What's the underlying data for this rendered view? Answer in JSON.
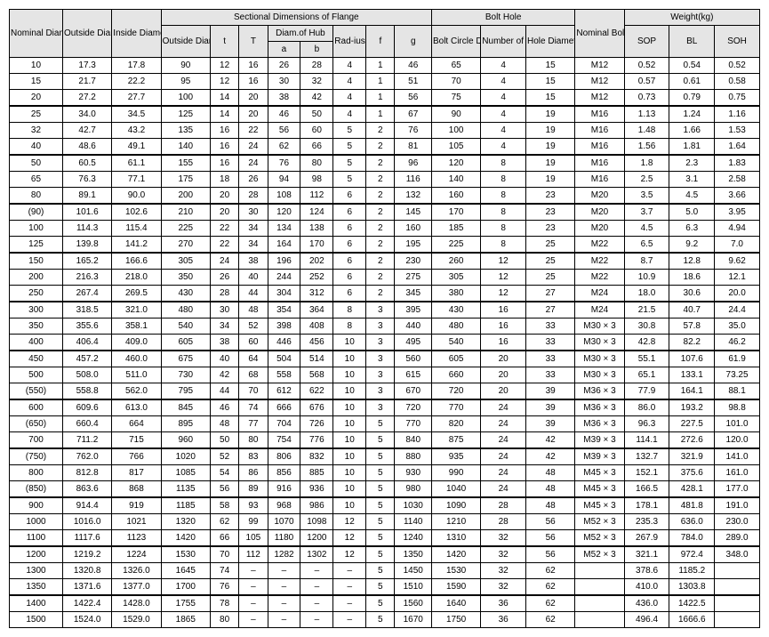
{
  "table": {
    "type": "table",
    "background_color": "#ffffff",
    "header_bg": "#e5e5e5",
    "border_color": "#000000",
    "font_family": "Arial",
    "font_size_pt": 8,
    "columns": [
      "Nominal Diameter of Flange",
      "Outside Diameter of Steel Pipe",
      "Inside Diameter of Flange do",
      "Outside Diameter of Flange D",
      "t",
      "T",
      "a",
      "b",
      "Rad-ius r",
      "f",
      "g",
      "Bolt Circle Diameter C",
      "Number of Bolt Holes",
      "Hole Diameter h",
      "Nominal Bolt Size",
      "SOP",
      "BL",
      "SOH"
    ],
    "header_groups": {
      "sectional": "Sectional Dimensions of Flange",
      "diam_hub": "Diam.of Hub",
      "bolt_hole": "Bolt Hole",
      "weight": "Weight(kg)"
    },
    "col_widths_pct": [
      6.5,
      6,
      6,
      6,
      3.5,
      3.5,
      4,
      4,
      4,
      3.5,
      4.5,
      6,
      5.5,
      6,
      6,
      5.5,
      5.5,
      5.5
    ],
    "groups": [
      [
        [
          "10",
          "17.3",
          "17.8",
          "90",
          "12",
          "16",
          "26",
          "28",
          "4",
          "1",
          "46",
          "65",
          "4",
          "15",
          "M12",
          "0.52",
          "0.54",
          "0.52"
        ],
        [
          "15",
          "21.7",
          "22.2",
          "95",
          "12",
          "16",
          "30",
          "32",
          "4",
          "1",
          "51",
          "70",
          "4",
          "15",
          "M12",
          "0.57",
          "0.61",
          "0.58"
        ],
        [
          "20",
          "27.2",
          "27.7",
          "100",
          "14",
          "20",
          "38",
          "42",
          "4",
          "1",
          "56",
          "75",
          "4",
          "15",
          "M12",
          "0.73",
          "0.79",
          "0.75"
        ]
      ],
      [
        [
          "25",
          "34.0",
          "34.5",
          "125",
          "14",
          "20",
          "46",
          "50",
          "4",
          "1",
          "67",
          "90",
          "4",
          "19",
          "M16",
          "1.13",
          "1.24",
          "1.16"
        ],
        [
          "32",
          "42.7",
          "43.2",
          "135",
          "16",
          "22",
          "56",
          "60",
          "5",
          "2",
          "76",
          "100",
          "4",
          "19",
          "M16",
          "1.48",
          "1.66",
          "1.53"
        ],
        [
          "40",
          "48.6",
          "49.1",
          "140",
          "16",
          "24",
          "62",
          "66",
          "5",
          "2",
          "81",
          "105",
          "4",
          "19",
          "M16",
          "1.56",
          "1.81",
          "1.64"
        ]
      ],
      [
        [
          "50",
          "60.5",
          "61.1",
          "155",
          "16",
          "24",
          "76",
          "80",
          "5",
          "2",
          "96",
          "120",
          "8",
          "19",
          "M16",
          "1.8",
          "2.3",
          "1.83"
        ],
        [
          "65",
          "76.3",
          "77.1",
          "175",
          "18",
          "26",
          "94",
          "98",
          "5",
          "2",
          "116",
          "140",
          "8",
          "19",
          "M16",
          "2.5",
          "3.1",
          "2.58"
        ],
        [
          "80",
          "89.1",
          "90.0",
          "200",
          "20",
          "28",
          "108",
          "112",
          "6",
          "2",
          "132",
          "160",
          "8",
          "23",
          "M20",
          "3.5",
          "4.5",
          "3.66"
        ]
      ],
      [
        [
          "(90)",
          "101.6",
          "102.6",
          "210",
          "20",
          "30",
          "120",
          "124",
          "6",
          "2",
          "145",
          "170",
          "8",
          "23",
          "M20",
          "3.7",
          "5.0",
          "3.95"
        ],
        [
          "100",
          "114.3",
          "115.4",
          "225",
          "22",
          "34",
          "134",
          "138",
          "6",
          "2",
          "160",
          "185",
          "8",
          "23",
          "M20",
          "4.5",
          "6.3",
          "4.94"
        ],
        [
          "125",
          "139.8",
          "141.2",
          "270",
          "22",
          "34",
          "164",
          "170",
          "6",
          "2",
          "195",
          "225",
          "8",
          "25",
          "M22",
          "6.5",
          "9.2",
          "7.0"
        ]
      ],
      [
        [
          "150",
          "165.2",
          "166.6",
          "305",
          "24",
          "38",
          "196",
          "202",
          "6",
          "2",
          "230",
          "260",
          "12",
          "25",
          "M22",
          "8.7",
          "12.8",
          "9.62"
        ],
        [
          "200",
          "216.3",
          "218.0",
          "350",
          "26",
          "40",
          "244",
          "252",
          "6",
          "2",
          "275",
          "305",
          "12",
          "25",
          "M22",
          "10.9",
          "18.6",
          "12.1"
        ],
        [
          "250",
          "267.4",
          "269.5",
          "430",
          "28",
          "44",
          "304",
          "312",
          "6",
          "2",
          "345",
          "380",
          "12",
          "27",
          "M24",
          "18.0",
          "30.6",
          "20.0"
        ]
      ],
      [
        [
          "300",
          "318.5",
          "321.0",
          "480",
          "30",
          "48",
          "354",
          "364",
          "8",
          "3",
          "395",
          "430",
          "16",
          "27",
          "M24",
          "21.5",
          "40.7",
          "24.4"
        ],
        [
          "350",
          "355.6",
          "358.1",
          "540",
          "34",
          "52",
          "398",
          "408",
          "8",
          "3",
          "440",
          "480",
          "16",
          "33",
          "M30 × 3",
          "30.8",
          "57.8",
          "35.0"
        ],
        [
          "400",
          "406.4",
          "409.0",
          "605",
          "38",
          "60",
          "446",
          "456",
          "10",
          "3",
          "495",
          "540",
          "16",
          "33",
          "M30 × 3",
          "42.8",
          "82.2",
          "46.2"
        ]
      ],
      [
        [
          "450",
          "457.2",
          "460.0",
          "675",
          "40",
          "64",
          "504",
          "514",
          "10",
          "3",
          "560",
          "605",
          "20",
          "33",
          "M30 × 3",
          "55.1",
          "107.6",
          "61.9"
        ],
        [
          "500",
          "508.0",
          "511.0",
          "730",
          "42",
          "68",
          "558",
          "568",
          "10",
          "3",
          "615",
          "660",
          "20",
          "33",
          "M30 × 3",
          "65.1",
          "133.1",
          "73.25"
        ],
        [
          "(550)",
          "558.8",
          "562.0",
          "795",
          "44",
          "70",
          "612",
          "622",
          "10",
          "3",
          "670",
          "720",
          "20",
          "39",
          "M36 × 3",
          "77.9",
          "164.1",
          "88.1"
        ]
      ],
      [
        [
          "600",
          "609.6",
          "613.0",
          "845",
          "46",
          "74",
          "666",
          "676",
          "10",
          "3",
          "720",
          "770",
          "24",
          "39",
          "M36 × 3",
          "86.0",
          "193.2",
          "98.8"
        ],
        [
          "(650)",
          "660.4",
          "664",
          "895",
          "48",
          "77",
          "704",
          "726",
          "10",
          "5",
          "770",
          "820",
          "24",
          "39",
          "M36 × 3",
          "96.3",
          "227.5",
          "101.0"
        ],
        [
          "700",
          "711.2",
          "715",
          "960",
          "50",
          "80",
          "754",
          "776",
          "10",
          "5",
          "840",
          "875",
          "24",
          "42",
          "M39 × 3",
          "114.1",
          "272.6",
          "120.0"
        ]
      ],
      [
        [
          "(750)",
          "762.0",
          "766",
          "1020",
          "52",
          "83",
          "806",
          "832",
          "10",
          "5",
          "880",
          "935",
          "24",
          "42",
          "M39 × 3",
          "132.7",
          "321.9",
          "141.0"
        ],
        [
          "800",
          "812.8",
          "817",
          "1085",
          "54",
          "86",
          "856",
          "885",
          "10",
          "5",
          "930",
          "990",
          "24",
          "48",
          "M45 × 3",
          "152.1",
          "375.6",
          "161.0"
        ],
        [
          "(850)",
          "863.6",
          "868",
          "1135",
          "56",
          "89",
          "916",
          "936",
          "10",
          "5",
          "980",
          "1040",
          "24",
          "48",
          "M45 × 3",
          "166.5",
          "428.1",
          "177.0"
        ]
      ],
      [
        [
          "900",
          "914.4",
          "919",
          "1185",
          "58",
          "93",
          "968",
          "986",
          "10",
          "5",
          "1030",
          "1090",
          "28",
          "48",
          "M45 × 3",
          "178.1",
          "481.8",
          "191.0"
        ],
        [
          "1000",
          "1016.0",
          "1021",
          "1320",
          "62",
          "99",
          "1070",
          "1098",
          "12",
          "5",
          "1140",
          "1210",
          "28",
          "56",
          "M52 × 3",
          "235.3",
          "636.0",
          "230.0"
        ],
        [
          "1100",
          "1117.6",
          "1123",
          "1420",
          "66",
          "105",
          "1180",
          "1200",
          "12",
          "5",
          "1240",
          "1310",
          "32",
          "56",
          "M52 × 3",
          "267.9",
          "784.0",
          "289.0"
        ]
      ],
      [
        [
          "1200",
          "1219.2",
          "1224",
          "1530",
          "70",
          "112",
          "1282",
          "1302",
          "12",
          "5",
          "1350",
          "1420",
          "32",
          "56",
          "M52 × 3",
          "321.1",
          "972.4",
          "348.0"
        ],
        [
          "1300",
          "1320.8",
          "1326.0",
          "1645",
          "74",
          "–",
          "–",
          "–",
          "–",
          "5",
          "1450",
          "1530",
          "32",
          "62",
          "",
          "378.6",
          "1185.2",
          ""
        ],
        [
          "1350",
          "1371.6",
          "1377.0",
          "1700",
          "76",
          "–",
          "–",
          "–",
          "–",
          "5",
          "1510",
          "1590",
          "32",
          "62",
          "",
          "410.0",
          "1303.8",
          ""
        ]
      ],
      [
        [
          "1400",
          "1422.4",
          "1428.0",
          "1755",
          "78",
          "–",
          "–",
          "–",
          "–",
          "5",
          "1560",
          "1640",
          "36",
          "62",
          "",
          "436.0",
          "1422.5",
          ""
        ],
        [
          "1500",
          "1524.0",
          "1529.0",
          "1865",
          "80",
          "–",
          "–",
          "–",
          "–",
          "5",
          "1670",
          "1750",
          "36",
          "62",
          "",
          "496.4",
          "1666.6",
          ""
        ]
      ]
    ]
  }
}
